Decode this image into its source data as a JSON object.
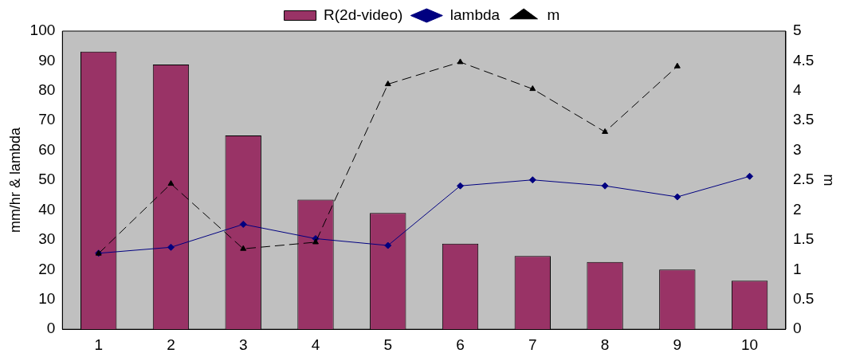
{
  "chart_data": {
    "type": "bar",
    "categories": [
      "1",
      "2",
      "3",
      "4",
      "5",
      "6",
      "7",
      "8",
      "9",
      "10"
    ],
    "ylabel": "mm/hr & lambda",
    "y2label": "m",
    "ylim": [
      0,
      100
    ],
    "yticks": [
      0,
      10,
      20,
      30,
      40,
      50,
      60,
      70,
      80,
      90,
      100
    ],
    "y2lim": [
      0,
      5
    ],
    "y2ticks": [
      0,
      0.5,
      1,
      1.5,
      2,
      2.5,
      3,
      3.5,
      4,
      4.5,
      5
    ],
    "grid": false,
    "legend": "top",
    "series": [
      {
        "name": "R(2d-video)",
        "color": "#993366",
        "values": [
          93.1,
          88.8,
          65,
          43.5,
          39,
          28.7,
          24.6,
          22.6,
          20,
          16.3
        ]
      },
      {
        "name": "lambda",
        "type": "line",
        "color": "#000080",
        "marker": "diamond",
        "line_style": "solid",
        "values": [
          25.5,
          27.5,
          35.2,
          30.4,
          28.1,
          48.1,
          50.1,
          48.1,
          44.4,
          51.3
        ]
      },
      {
        "name": "m",
        "type": "line",
        "axis": "y2",
        "color": "#000000",
        "marker": "triangle",
        "line_style": "dashed",
        "values": [
          1.27,
          2.44,
          1.35,
          1.46,
          4.11,
          4.48,
          4.03,
          3.31,
          4.41,
          null
        ]
      }
    ]
  }
}
